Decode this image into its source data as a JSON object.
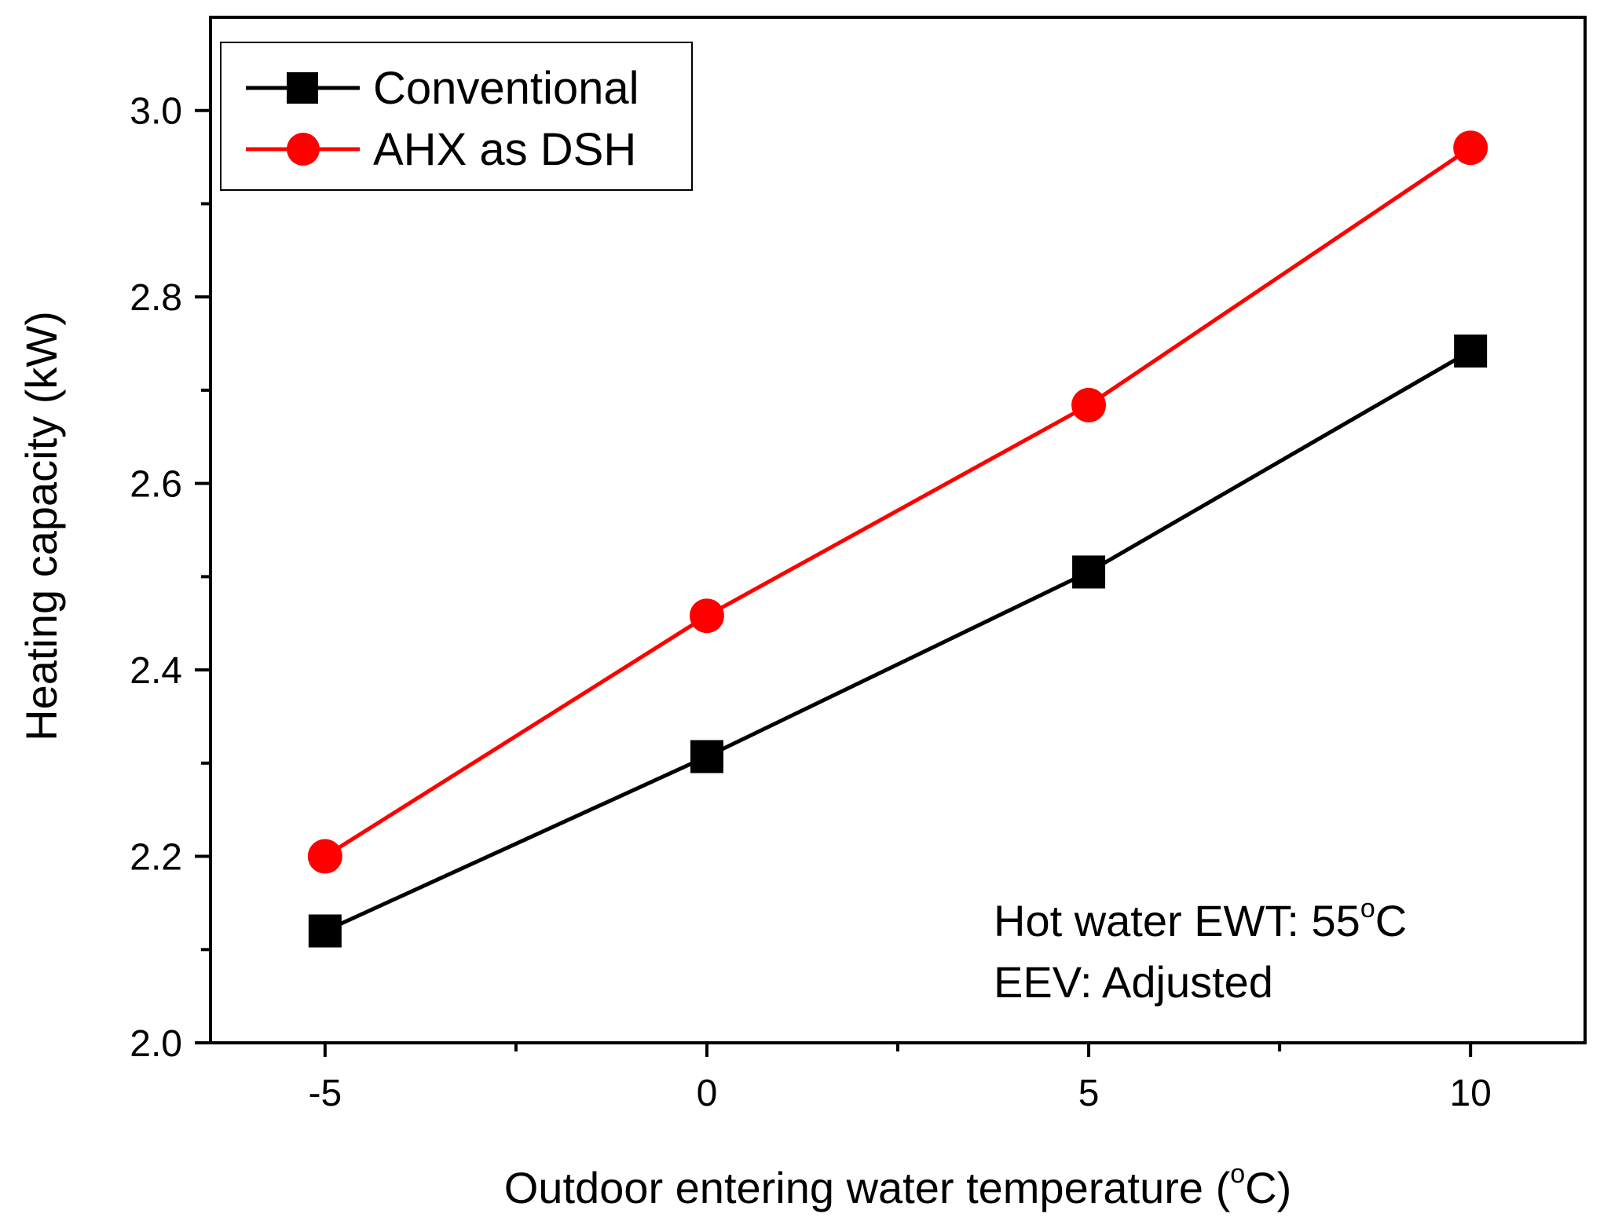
{
  "chart_data": {
    "type": "line",
    "title": "",
    "xlabel": "Outdoor entering water temperature (°C)",
    "xlabel_prefix": "Outdoor entering water temperature (",
    "xlabel_sup": "o",
    "xlabel_suffix": "C)",
    "ylabel": "Heating capacity (kW)",
    "x": [
      -5,
      0,
      5,
      10
    ],
    "xlim": [
      -6.5,
      11.5
    ],
    "ylim": [
      2.0,
      3.1
    ],
    "x_ticks": [
      -5,
      0,
      5,
      10
    ],
    "x_tick_labels": [
      "-5",
      "0",
      "5",
      "10"
    ],
    "x_minor_ticks": [
      -2.5,
      2.5,
      7.5
    ],
    "y_ticks": [
      2.0,
      2.2,
      2.4,
      2.6,
      2.8,
      3.0
    ],
    "y_tick_labels": [
      "2.0",
      "2.2",
      "2.4",
      "2.6",
      "2.8",
      "3.0"
    ],
    "y_minor_ticks": [
      2.1,
      2.3,
      2.5,
      2.7,
      2.9
    ],
    "grid": false,
    "legend_position": "top-left",
    "series": [
      {
        "name": "Conventional",
        "color": "#000000",
        "marker": "square",
        "values": [
          2.12,
          2.307,
          2.505,
          2.742
        ]
      },
      {
        "name": "AHX as DSH",
        "color": "#ff0000",
        "marker": "circle",
        "values": [
          2.2,
          2.458,
          2.684,
          2.96
        ]
      }
    ],
    "annotations": {
      "line1_prefix": "Hot water EWT: 55",
      "line1_sup": "o",
      "line1_suffix": "C",
      "line2": "EEV: Adjusted"
    }
  }
}
